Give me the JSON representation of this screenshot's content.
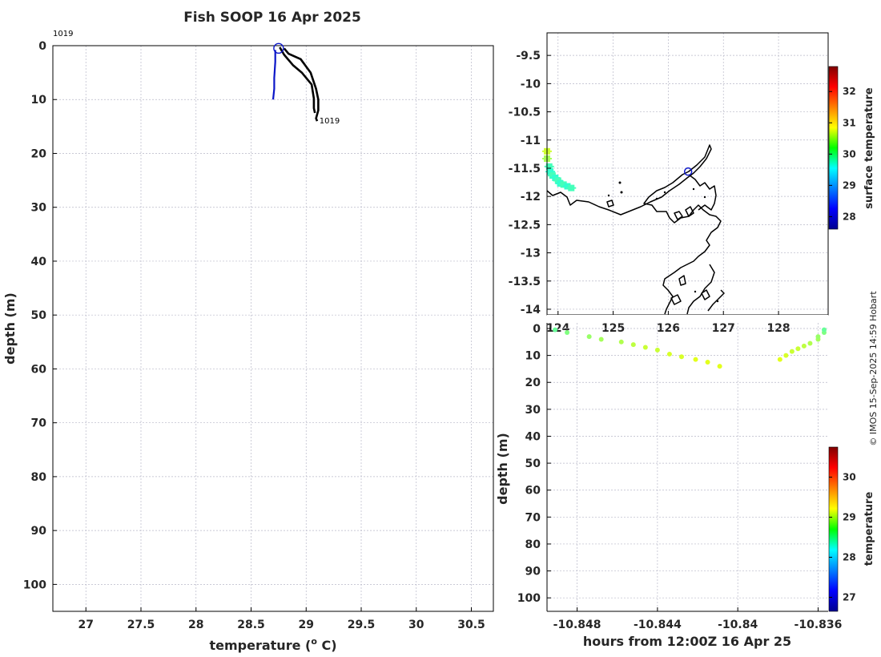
{
  "chart_data": [
    {
      "type": "line",
      "title": "Fish SOOP 16 Apr 2025",
      "xlabel": "temperature (",
      "xlabel_super": "o",
      "xlabel_end": " C)",
      "ylabel": "depth (m)",
      "xlim": [
        26.7,
        30.7
      ],
      "ylim": [
        105,
        0
      ],
      "xticks": [
        "27",
        "27.5",
        "28",
        "28.5",
        "29",
        "29.5",
        "30",
        "30.5"
      ],
      "yticks": [
        "0",
        "10",
        "20",
        "30",
        "40",
        "50",
        "60",
        "70",
        "80",
        "90",
        "100"
      ],
      "annotations": [
        {
          "text": "1019",
          "x": 26.7,
          "y": -2.2
        },
        {
          "text": "1019",
          "x": 29.12,
          "y": 14
        }
      ],
      "series": [
        {
          "color": "#0b16c8",
          "x": [
            28.72,
            28.72,
            28.71,
            28.71,
            28.7
          ],
          "y": [
            0.8,
            3,
            6,
            8,
            10
          ]
        },
        {
          "color": "#000000",
          "x": [
            28.8,
            28.84,
            28.95,
            29.04,
            29.09,
            29.11,
            29.11,
            29.09,
            29.1
          ],
          "y": [
            0.5,
            1.5,
            2.5,
            5,
            8,
            10,
            12,
            13.5,
            14
          ]
        },
        {
          "color": "#000000",
          "x": [
            28.76,
            28.8,
            28.88,
            28.96,
            29.05,
            29.07,
            29.07,
            29.08
          ],
          "y": [
            0.3,
            1.7,
            3.6,
            5,
            7.2,
            9.8,
            11.6,
            12.5
          ]
        }
      ],
      "marker": {
        "x": 28.75,
        "y": 0.5,
        "color": "#0b16c8"
      }
    },
    {
      "type": "scatter",
      "xlim": [
        123.8,
        128.9
      ],
      "ylim": [
        -14.1,
        -9.1
      ],
      "xticks": [
        "124",
        "125",
        "126",
        "127",
        "128"
      ],
      "yticks": [
        "-9.5",
        "-10",
        "-10.5",
        "-11",
        "-11.5",
        "-12",
        "-12.5",
        "-13",
        "-13.5",
        "-14"
      ],
      "colorbar_label": "surface temperature",
      "colorbar_ticks": [
        "28",
        "29",
        "30",
        "31",
        "32"
      ],
      "colorbar_range": [
        27.6,
        32.8
      ],
      "track": [
        {
          "lon": 123.8,
          "lat": -11.2,
          "t": 30.6
        },
        {
          "lon": 123.8,
          "lat": -11.33,
          "t": 30.4
        },
        {
          "lon": 123.84,
          "lat": -11.47,
          "t": 29.9
        },
        {
          "lon": 123.86,
          "lat": -11.56,
          "t": 29.8
        },
        {
          "lon": 123.9,
          "lat": -11.63,
          "t": 29.9
        },
        {
          "lon": 123.95,
          "lat": -11.67,
          "t": 29.8
        },
        {
          "lon": 124.0,
          "lat": -11.72,
          "t": 29.9
        },
        {
          "lon": 124.04,
          "lat": -11.77,
          "t": 29.8
        },
        {
          "lon": 124.1,
          "lat": -11.79,
          "t": 29.9
        },
        {
          "lon": 124.17,
          "lat": -11.82,
          "t": 29.8
        },
        {
          "lon": 124.24,
          "lat": -11.85,
          "t": 29.9
        }
      ],
      "marker": {
        "lon": 126.36,
        "lat": -11.56,
        "color": "#0b16c8"
      }
    },
    {
      "type": "scatter",
      "xlabel": "hours from 12:00Z 16 Apr 25",
      "ylabel": "depth (m)",
      "xlim": [
        -10.8495,
        -10.8355
      ],
      "ylim": [
        105,
        0
      ],
      "xticks": [
        "-10.848",
        "-10.844",
        "-10.84",
        "-10.836"
      ],
      "yticks": [
        "0",
        "10",
        "20",
        "30",
        "40",
        "50",
        "60",
        "70",
        "80",
        "90",
        "100"
      ],
      "colorbar_label": "temperature",
      "colorbar_ticks": [
        "27",
        "28",
        "29",
        "30"
      ],
      "colorbar_range": [
        26.65,
        30.75
      ],
      "points": [
        {
          "x": -10.8491,
          "y": 0.5,
          "t": 28.6
        },
        {
          "x": -10.8485,
          "y": 1.5,
          "t": 28.7
        },
        {
          "x": -10.8474,
          "y": 3,
          "t": 28.8
        },
        {
          "x": -10.8468,
          "y": 4,
          "t": 28.85
        },
        {
          "x": -10.8458,
          "y": 5,
          "t": 28.9
        },
        {
          "x": -10.8452,
          "y": 6,
          "t": 28.95
        },
        {
          "x": -10.8446,
          "y": 7,
          "t": 29.0
        },
        {
          "x": -10.844,
          "y": 8,
          "t": 29.0
        },
        {
          "x": -10.8434,
          "y": 9.5,
          "t": 29.05
        },
        {
          "x": -10.8428,
          "y": 10.5,
          "t": 29.05
        },
        {
          "x": -10.8421,
          "y": 11.5,
          "t": 29.1
        },
        {
          "x": -10.8415,
          "y": 12.5,
          "t": 29.1
        },
        {
          "x": -10.8409,
          "y": 14,
          "t": 29.1
        },
        {
          "x": -10.8379,
          "y": 11.5,
          "t": 29.1
        },
        {
          "x": -10.8376,
          "y": 10,
          "t": 29.05
        },
        {
          "x": -10.8373,
          "y": 8.5,
          "t": 29.0
        },
        {
          "x": -10.837,
          "y": 7.5,
          "t": 29.0
        },
        {
          "x": -10.8367,
          "y": 6.5,
          "t": 28.95
        },
        {
          "x": -10.8364,
          "y": 5.5,
          "t": 28.9
        },
        {
          "x": -10.836,
          "y": 4,
          "t": 28.85
        },
        {
          "x": -10.836,
          "y": 3,
          "t": 28.8
        },
        {
          "x": -10.8357,
          "y": 1.5,
          "t": 28.7
        },
        {
          "x": -10.8357,
          "y": 0.5,
          "t": 28.6
        }
      ]
    }
  ],
  "credit": "© IMOS 15-Sep-2025 14:59 Hobart"
}
